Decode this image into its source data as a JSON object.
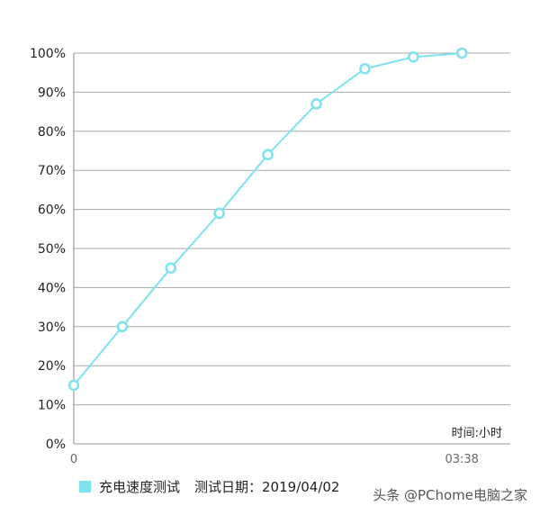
{
  "chart_data": {
    "type": "line",
    "y_ticks": [
      "0%",
      "10%",
      "20%",
      "30%",
      "40%",
      "50%",
      "60%",
      "70%",
      "80%",
      "90%",
      "100%"
    ],
    "ylim": [
      0,
      100
    ],
    "x_tick_labels": [
      "0",
      "03:38"
    ],
    "x_unit_label": "时间:小时",
    "grid": true,
    "series": [
      {
        "name": "充电速度测试",
        "color": "#7fe3ef",
        "values": [
          15,
          30,
          45,
          59,
          74,
          87,
          96,
          99,
          100
        ]
      }
    ]
  },
  "legend": {
    "series_label": "充电速度测试",
    "date_text": "测试日期：2019/04/02"
  },
  "watermark": "头条 @PChome电脑之家"
}
